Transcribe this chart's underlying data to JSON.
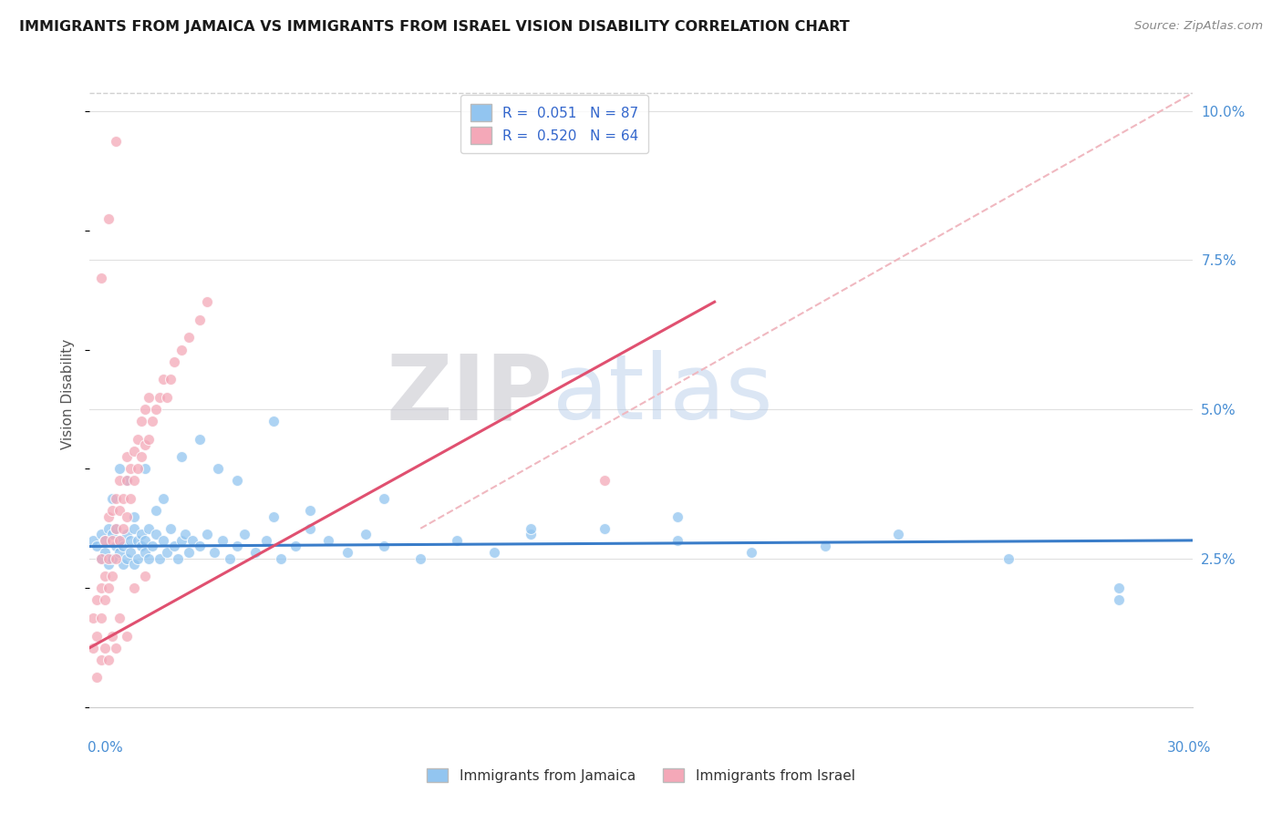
{
  "title": "IMMIGRANTS FROM JAMAICA VS IMMIGRANTS FROM ISRAEL VISION DISABILITY CORRELATION CHART",
  "source": "Source: ZipAtlas.com",
  "ylabel": "Vision Disability",
  "y_ticks": [
    0.0,
    0.025,
    0.05,
    0.075,
    0.1
  ],
  "y_tick_labels": [
    "",
    "2.5%",
    "5.0%",
    "7.5%",
    "10.0%"
  ],
  "x_lim": [
    0.0,
    0.3
  ],
  "y_lim": [
    0.0,
    0.105
  ],
  "jamaica_color": "#92C5F0",
  "israel_color": "#F4A8B8",
  "jamaica_line_color": "#3A7DC9",
  "israel_line_color": "#E05070",
  "diag_line_color": "#F0B8C0",
  "watermark_zip": "ZIP",
  "watermark_atlas": "atlas",
  "background_color": "#ffffff",
  "jamaica_x": [
    0.001,
    0.002,
    0.003,
    0.003,
    0.004,
    0.004,
    0.005,
    0.005,
    0.006,
    0.006,
    0.007,
    0.007,
    0.008,
    0.008,
    0.009,
    0.009,
    0.01,
    0.01,
    0.011,
    0.011,
    0.012,
    0.012,
    0.013,
    0.013,
    0.014,
    0.014,
    0.015,
    0.015,
    0.016,
    0.016,
    0.017,
    0.018,
    0.019,
    0.02,
    0.021,
    0.022,
    0.023,
    0.024,
    0.025,
    0.026,
    0.027,
    0.028,
    0.03,
    0.032,
    0.034,
    0.036,
    0.038,
    0.04,
    0.042,
    0.045,
    0.048,
    0.052,
    0.056,
    0.06,
    0.065,
    0.07,
    0.075,
    0.08,
    0.09,
    0.1,
    0.11,
    0.12,
    0.14,
    0.16,
    0.18,
    0.2,
    0.22,
    0.25,
    0.28,
    0.006,
    0.008,
    0.01,
    0.012,
    0.015,
    0.018,
    0.02,
    0.025,
    0.03,
    0.035,
    0.04,
    0.05,
    0.06,
    0.28,
    0.05,
    0.08,
    0.12,
    0.16
  ],
  "jamaica_y": [
    0.028,
    0.027,
    0.029,
    0.025,
    0.028,
    0.026,
    0.03,
    0.024,
    0.029,
    0.025,
    0.027,
    0.03,
    0.026,
    0.028,
    0.024,
    0.027,
    0.029,
    0.025,
    0.028,
    0.026,
    0.03,
    0.024,
    0.028,
    0.025,
    0.027,
    0.029,
    0.026,
    0.028,
    0.025,
    0.03,
    0.027,
    0.029,
    0.025,
    0.028,
    0.026,
    0.03,
    0.027,
    0.025,
    0.028,
    0.029,
    0.026,
    0.028,
    0.027,
    0.029,
    0.026,
    0.028,
    0.025,
    0.027,
    0.029,
    0.026,
    0.028,
    0.025,
    0.027,
    0.03,
    0.028,
    0.026,
    0.029,
    0.027,
    0.025,
    0.028,
    0.026,
    0.029,
    0.03,
    0.028,
    0.026,
    0.027,
    0.029,
    0.025,
    0.02,
    0.035,
    0.04,
    0.038,
    0.032,
    0.04,
    0.033,
    0.035,
    0.042,
    0.045,
    0.04,
    0.038,
    0.032,
    0.033,
    0.018,
    0.048,
    0.035,
    0.03,
    0.032
  ],
  "israel_x": [
    0.001,
    0.001,
    0.002,
    0.002,
    0.003,
    0.003,
    0.003,
    0.004,
    0.004,
    0.004,
    0.005,
    0.005,
    0.005,
    0.006,
    0.006,
    0.006,
    0.007,
    0.007,
    0.007,
    0.008,
    0.008,
    0.008,
    0.009,
    0.009,
    0.01,
    0.01,
    0.01,
    0.011,
    0.011,
    0.012,
    0.012,
    0.013,
    0.013,
    0.014,
    0.014,
    0.015,
    0.015,
    0.016,
    0.016,
    0.017,
    0.018,
    0.019,
    0.02,
    0.021,
    0.022,
    0.023,
    0.025,
    0.027,
    0.03,
    0.032,
    0.002,
    0.003,
    0.004,
    0.005,
    0.006,
    0.007,
    0.008,
    0.01,
    0.012,
    0.015,
    0.003,
    0.005,
    0.007,
    0.14
  ],
  "israel_y": [
    0.01,
    0.015,
    0.012,
    0.018,
    0.015,
    0.02,
    0.025,
    0.018,
    0.022,
    0.028,
    0.02,
    0.025,
    0.032,
    0.022,
    0.028,
    0.033,
    0.025,
    0.03,
    0.035,
    0.028,
    0.033,
    0.038,
    0.03,
    0.035,
    0.032,
    0.038,
    0.042,
    0.035,
    0.04,
    0.038,
    0.043,
    0.04,
    0.045,
    0.042,
    0.048,
    0.044,
    0.05,
    0.045,
    0.052,
    0.048,
    0.05,
    0.052,
    0.055,
    0.052,
    0.055,
    0.058,
    0.06,
    0.062,
    0.065,
    0.068,
    0.005,
    0.008,
    0.01,
    0.008,
    0.012,
    0.01,
    0.015,
    0.012,
    0.02,
    0.022,
    0.072,
    0.082,
    0.095,
    0.038
  ],
  "jam_line_x": [
    0.0,
    0.3
  ],
  "jam_line_y": [
    0.027,
    0.028
  ],
  "isr_line_x": [
    0.0,
    0.17
  ],
  "isr_line_y": [
    0.01,
    0.068
  ],
  "diag_line_x": [
    0.09,
    0.3
  ],
  "diag_line_y": [
    0.03,
    0.103
  ]
}
